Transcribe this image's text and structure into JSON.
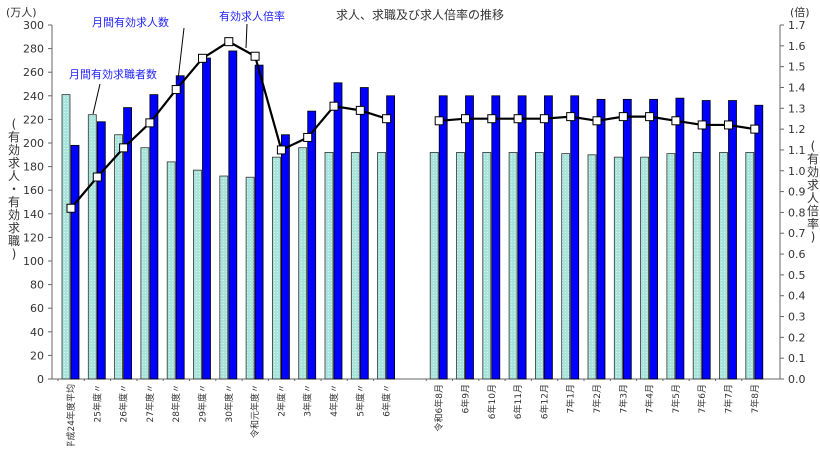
{
  "chart_data": {
    "type": "bar",
    "title": "求人、求職及び求人倍率の推移",
    "left_unit": "(万人)",
    "right_unit": "(倍)",
    "ylabel": "(有効求人・有効求職)",
    "y2label": "(有効求人倍率)",
    "ylim": [
      0,
      300
    ],
    "y2lim": [
      0,
      1.7
    ],
    "yticks": [
      "0",
      "20",
      "40",
      "60",
      "80",
      "100",
      "120",
      "140",
      "160",
      "180",
      "200",
      "220",
      "240",
      "260",
      "280",
      "300"
    ],
    "y2ticks": [
      "0.0",
      "0.1",
      "0.2",
      "0.3",
      "0.4",
      "0.5",
      "0.6",
      "0.7",
      "0.8",
      "0.9",
      "1.0",
      "1.1",
      "1.2",
      "1.3",
      "1.4",
      "1.5",
      "1.6",
      "1.7"
    ],
    "grid": false,
    "categories": [
      "平成24年度平均",
      "25年度〃",
      "26年度〃",
      "27年度〃",
      "28年度〃",
      "29年度〃",
      "30年度〃",
      "令和元年度〃",
      "2年度〃",
      "3年度〃",
      "4年度〃",
      "5年度〃",
      "6年度〃",
      "令和6年8月",
      "6年9月",
      "6年10月",
      "6年11月",
      "6年12月",
      "7年1月",
      "7年2月",
      "7年3月",
      "7年4月",
      "7年5月",
      "7年6月",
      "7年7月",
      "7年8月"
    ],
    "series": [
      {
        "name": "月間有効求職者数",
        "type": "bar",
        "axis": "left",
        "color": "#a8e4dc",
        "values": [
          241,
          224,
          207,
          196,
          184,
          177,
          172,
          171,
          188,
          196,
          192,
          192,
          192,
          192,
          192,
          192,
          192,
          192,
          191,
          190,
          188,
          188,
          191,
          192,
          192,
          192
        ]
      },
      {
        "name": "月間有効求人数",
        "type": "bar",
        "axis": "left",
        "color": "#0000ff",
        "values": [
          198,
          218,
          230,
          241,
          257,
          272,
          278,
          266,
          207,
          227,
          251,
          247,
          240,
          240,
          240,
          240,
          240,
          240,
          240,
          237,
          237,
          237,
          238,
          236,
          236,
          232
        ]
      },
      {
        "name": "有効求人倍率",
        "type": "line",
        "axis": "right",
        "color": "#000000",
        "values": [
          0.82,
          0.97,
          1.11,
          1.23,
          1.39,
          1.54,
          1.62,
          1.55,
          1.1,
          1.16,
          1.31,
          1.29,
          1.25,
          1.24,
          1.25,
          1.25,
          1.25,
          1.25,
          1.26,
          1.24,
          1.26,
          1.26,
          1.24,
          1.22,
          1.22,
          1.2
        ]
      }
    ]
  }
}
